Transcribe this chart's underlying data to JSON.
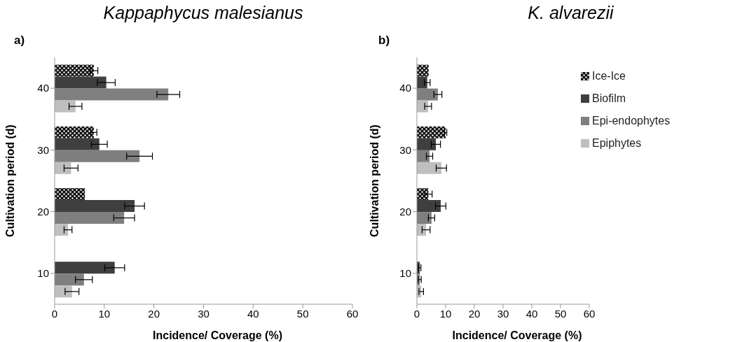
{
  "chart_data": [
    {
      "type": "bar",
      "orientation": "horizontal",
      "title": "Kappaphycus malesianus",
      "annotations": [
        "a)"
      ],
      "xlabel": "Incidence/ Coverage (%)",
      "ylabel": "Cultivation period (d)",
      "categories": [
        "40",
        "30",
        "20",
        "10"
      ],
      "xlim": [
        0,
        60
      ],
      "xticks": [
        0,
        10,
        20,
        30,
        40,
        50,
        60
      ],
      "grid": false,
      "legend": false,
      "series": [
        {
          "color": "#111111",
          "values": [
            7.9,
            7.9,
            6.1,
            null
          ],
          "errors": [
            0.8,
            0.6,
            null,
            null
          ]
        },
        {
          "color": "#3f3f3f",
          "values": [
            10.4,
            9.0,
            16.1,
            12.1
          ],
          "errors": [
            1.8,
            1.6,
            2.0,
            2.0
          ]
        },
        {
          "color": "#7f7f7f",
          "values": [
            22.9,
            17.1,
            14.0,
            5.9
          ],
          "errors": [
            2.3,
            2.6,
            2.1,
            1.7
          ]
        },
        {
          "color": "#bfbfbf",
          "values": [
            4.2,
            3.3,
            2.7,
            3.5
          ],
          "errors": [
            1.3,
            1.4,
            0.8,
            1.4
          ]
        }
      ]
    },
    {
      "type": "bar",
      "orientation": "horizontal",
      "title": "K. alvarezii",
      "annotations": [
        "b)"
      ],
      "xlabel": "Incidence/ Coverage (%)",
      "ylabel": "Cultivation period (d)",
      "categories": [
        "40",
        "30",
        "20",
        "10"
      ],
      "xlim": [
        0,
        60
      ],
      "xticks": [
        0,
        10,
        20,
        30,
        40,
        50,
        60
      ],
      "grid": false,
      "legend": "top right",
      "series": [
        {
          "name": "Ice-Ice",
          "color": "#111111",
          "values": [
            4.1,
            10.0,
            4.0,
            null
          ],
          "errors": [
            null,
            0.4,
            1.3,
            null
          ]
        },
        {
          "name": "Biofilm",
          "color": "#3f3f3f",
          "values": [
            3.6,
            6.6,
            8.3,
            1.0
          ],
          "errors": [
            1.0,
            1.6,
            1.8,
            0.4
          ]
        },
        {
          "name": "Epi-endophytes",
          "color": "#7f7f7f",
          "values": [
            7.3,
            4.4,
            5.1,
            1.0
          ],
          "errors": [
            1.4,
            1.1,
            1.1,
            0.5
          ]
        },
        {
          "name": "Epiphytes",
          "color": "#bfbfbf",
          "values": [
            3.9,
            8.5,
            3.2,
            1.5
          ],
          "errors": [
            1.2,
            1.8,
            1.4,
            0.8
          ]
        }
      ]
    }
  ]
}
